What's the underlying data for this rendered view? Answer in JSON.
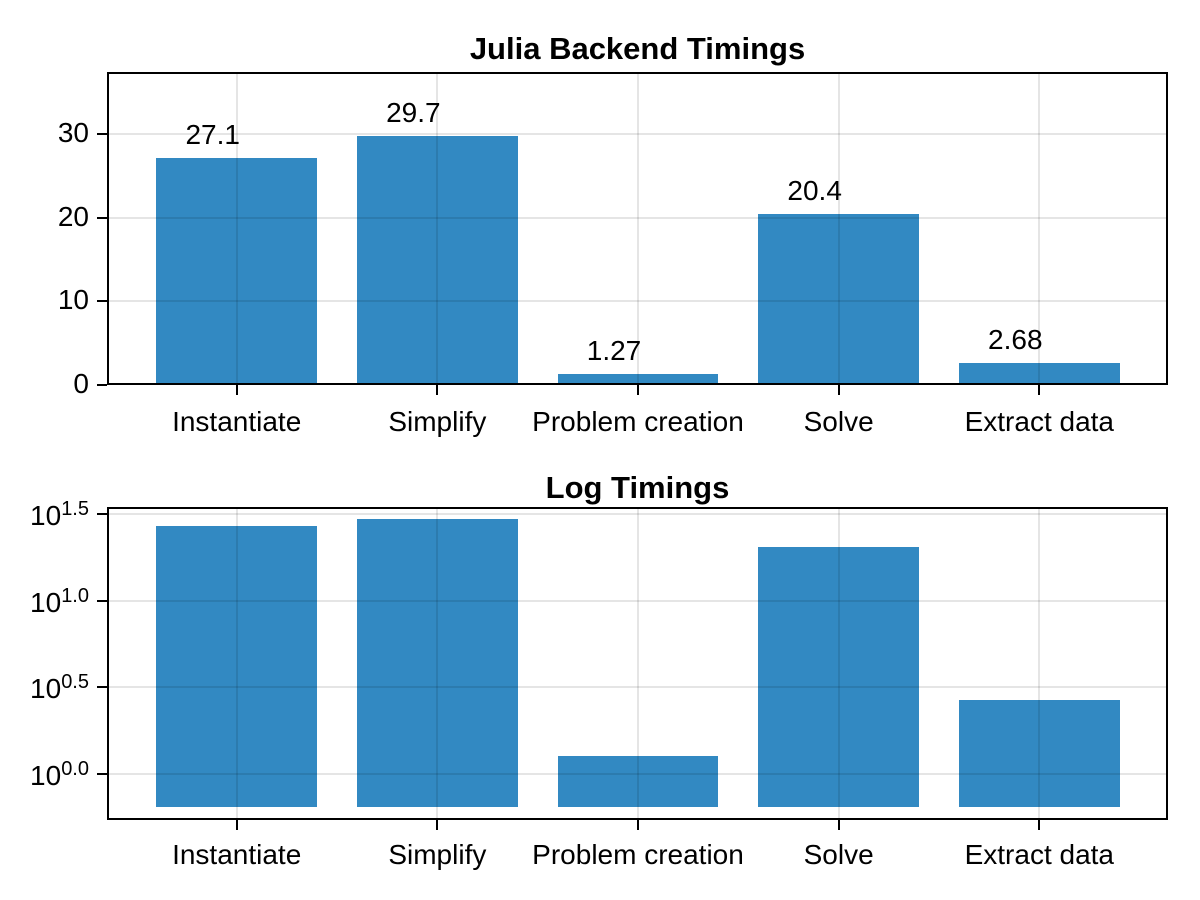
{
  "figure": {
    "background": "#ffffff",
    "bar_color": "#3289c2",
    "text_color": "#000000",
    "grid_color": "rgba(0,0,0,0.10)"
  },
  "chart_data": [
    {
      "type": "bar",
      "title": "Julia Backend Timings",
      "categories": [
        "Instantiate",
        "Simplify",
        "Problem creation",
        "Solve",
        "Extract data"
      ],
      "values": [
        27.1,
        29.7,
        1.27,
        20.4,
        2.68
      ],
      "value_labels": [
        "27.1",
        "29.7",
        "1.27",
        "20.4",
        "2.68"
      ],
      "xlabel": "",
      "ylabel": "",
      "yscale": "linear",
      "ytick_values": [
        0,
        10,
        20,
        30
      ],
      "ytick_labels": [
        "0",
        "10",
        "20",
        "30"
      ],
      "ylim": [
        0,
        37.4
      ],
      "grid": "on",
      "legend": "none",
      "series_color": "#3289c2"
    },
    {
      "type": "bar",
      "title": "Log Timings",
      "categories": [
        "Instantiate",
        "Simplify",
        "Problem creation",
        "Solve",
        "Extract data"
      ],
      "values": [
        27.1,
        29.7,
        1.27,
        20.4,
        2.68
      ],
      "xlabel": "",
      "ylabel": "",
      "yscale": "log10",
      "ytick_base": "10",
      "ytick_exponents": [
        "0.0",
        "0.5",
        "1.0",
        "1.5"
      ],
      "ytick_labels": [
        "10^0.0",
        "10^0.5",
        "10^1.0",
        "10^1.5"
      ],
      "ylim_decades": [
        -0.27,
        1.54
      ],
      "bar_baseline_decades": -0.193,
      "grid": "on",
      "legend": "none",
      "series_color": "#3289c2"
    }
  ]
}
